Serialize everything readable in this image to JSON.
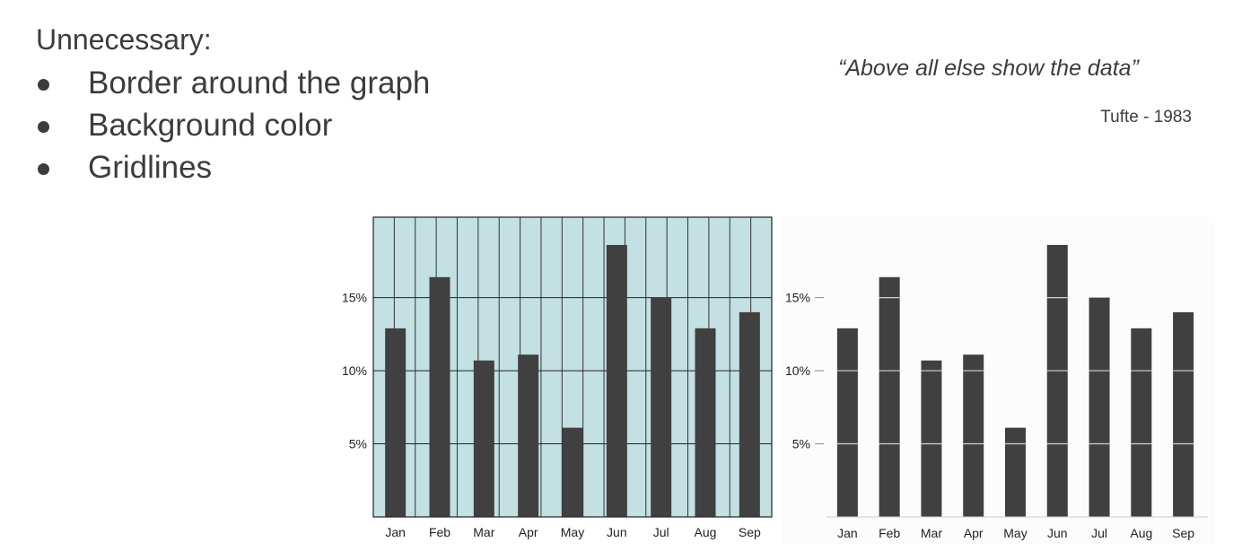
{
  "slide": {
    "heading": "Unnecessary:",
    "bullets": [
      "Border around the graph",
      "Background color",
      "Gridlines"
    ],
    "quote": "“Above all else show the data”",
    "attribution": "Tufte - 1983"
  },
  "chart_data": [
    {
      "type": "bar",
      "categories": [
        "Jan",
        "Feb",
        "Mar",
        "Apr",
        "May",
        "Jun",
        "Jul",
        "Aug",
        "Sep"
      ],
      "values": [
        12.9,
        16.4,
        10.7,
        11.1,
        6.1,
        18.6,
        15.0,
        12.9,
        14.0
      ],
      "ytick_labels": [
        "5%",
        "10%",
        "15%"
      ],
      "yticks": [
        5,
        10,
        15
      ],
      "ylim": [
        0,
        20.5
      ],
      "grid": true,
      "border": true,
      "background": "#c3e0e3",
      "bar_color": "#404040"
    },
    {
      "type": "bar",
      "categories": [
        "Jan",
        "Feb",
        "Mar",
        "Apr",
        "May",
        "Jun",
        "Jul",
        "Aug",
        "Sep"
      ],
      "values": [
        12.9,
        16.4,
        10.7,
        11.1,
        6.1,
        18.6,
        15.0,
        12.9,
        14.0
      ],
      "ytick_labels": [
        "5%",
        "10%",
        "15%"
      ],
      "yticks": [
        5,
        10,
        15
      ],
      "ylim": [
        0,
        20.5
      ],
      "grid": false,
      "border": false,
      "background": "#ffffff",
      "bar_color": "#404040"
    }
  ]
}
